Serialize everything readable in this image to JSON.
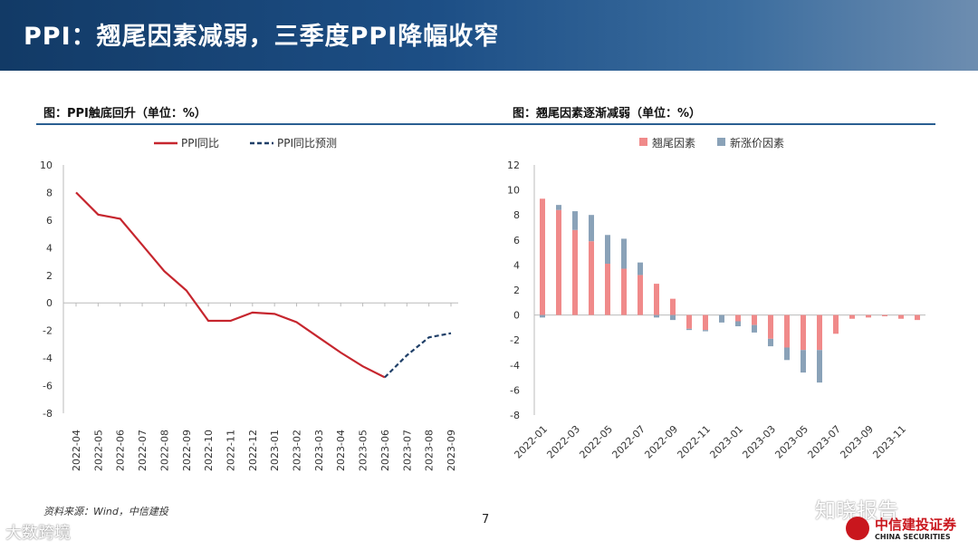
{
  "header": {
    "title": "PPI：翘尾因素减弱，三季度PPI降幅收窄"
  },
  "footer": {
    "source": "资料来源：Wind，中信建投",
    "page_number": "7"
  },
  "watermarks": {
    "left": "大数跨境",
    "right": "知晓报告"
  },
  "logo": {
    "cn": "中信建投证券",
    "en": "CHINA SECURITIES"
  },
  "colors": {
    "red": "#c6262e",
    "navy": "#1f3f68",
    "pink": "#f08a8a",
    "steel": "#8aa2b8"
  },
  "chart_data": [
    {
      "type": "line",
      "title": "图：PPI触底回升（单位：%）",
      "legend": [
        "PPI同比",
        "PPI同比预测"
      ],
      "categories": [
        "2022-04",
        "2022-05",
        "2022-06",
        "2022-07",
        "2022-08",
        "2022-09",
        "2022-10",
        "2022-11",
        "2022-12",
        "2023-01",
        "2023-02",
        "2023-03",
        "2023-04",
        "2023-05",
        "2023-06",
        "2023-07",
        "2023-08",
        "2023-09"
      ],
      "series": [
        {
          "name": "PPI同比",
          "values": [
            8.0,
            6.4,
            6.1,
            4.2,
            2.3,
            0.9,
            -1.3,
            -1.3,
            -0.7,
            -0.8,
            -1.4,
            -2.5,
            -3.6,
            -4.6,
            -5.4,
            null,
            null,
            null
          ]
        },
        {
          "name": "PPI同比预测",
          "values": [
            null,
            null,
            null,
            null,
            null,
            null,
            null,
            null,
            null,
            null,
            null,
            null,
            null,
            null,
            -5.4,
            -3.8,
            -2.5,
            -2.2
          ]
        }
      ],
      "yticks": [
        "10",
        "8",
        "6",
        "4",
        "2",
        "0",
        "-2",
        "-4",
        "-6",
        "-8"
      ],
      "ylim": [
        -8,
        10
      ]
    },
    {
      "type": "bar",
      "stacked": true,
      "title": "图：翘尾因素逐渐减弱（单位：%）",
      "legend": [
        "翘尾因素",
        "新涨价因素"
      ],
      "xticks": [
        "2022-01",
        "2022-03",
        "2022-05",
        "2022-07",
        "2022-09",
        "2022-11",
        "2023-01",
        "2023-03",
        "2023-05",
        "2023-07",
        "2023-09",
        "2023-11"
      ],
      "categories": [
        "2022-01",
        "2022-02",
        "2022-03",
        "2022-04",
        "2022-05",
        "2022-06",
        "2022-07",
        "2022-08",
        "2022-09",
        "2022-10",
        "2022-11",
        "2022-12",
        "2023-01",
        "2023-02",
        "2023-03",
        "2023-04",
        "2023-05",
        "2023-06",
        "2023-07",
        "2023-08",
        "2023-09",
        "2023-10",
        "2023-11",
        "2023-12"
      ],
      "series": [
        {
          "name": "翘尾因素",
          "values": [
            9.3,
            8.4,
            6.8,
            5.9,
            4.1,
            3.7,
            3.2,
            2.5,
            1.3,
            -1.1,
            -1.2,
            0.0,
            -0.5,
            -0.8,
            -1.9,
            -2.6,
            -2.8,
            -2.8,
            -1.5,
            -0.3,
            -0.2,
            -0.1,
            -0.3,
            -0.4
          ]
        },
        {
          "name": "新涨价因素",
          "values": [
            -0.2,
            0.4,
            1.5,
            2.1,
            2.3,
            2.4,
            1.0,
            -0.2,
            -0.4,
            -0.1,
            -0.1,
            -0.6,
            -0.4,
            -0.6,
            -0.6,
            -1.0,
            -1.8,
            -2.6,
            0.0,
            0.0,
            0.0,
            0.0,
            0.0,
            0.0
          ]
        }
      ],
      "yticks": [
        "12",
        "10",
        "8",
        "6",
        "4",
        "2",
        "0",
        "-2",
        "-4",
        "-6",
        "-8"
      ],
      "ylim": [
        -8,
        12
      ]
    }
  ]
}
